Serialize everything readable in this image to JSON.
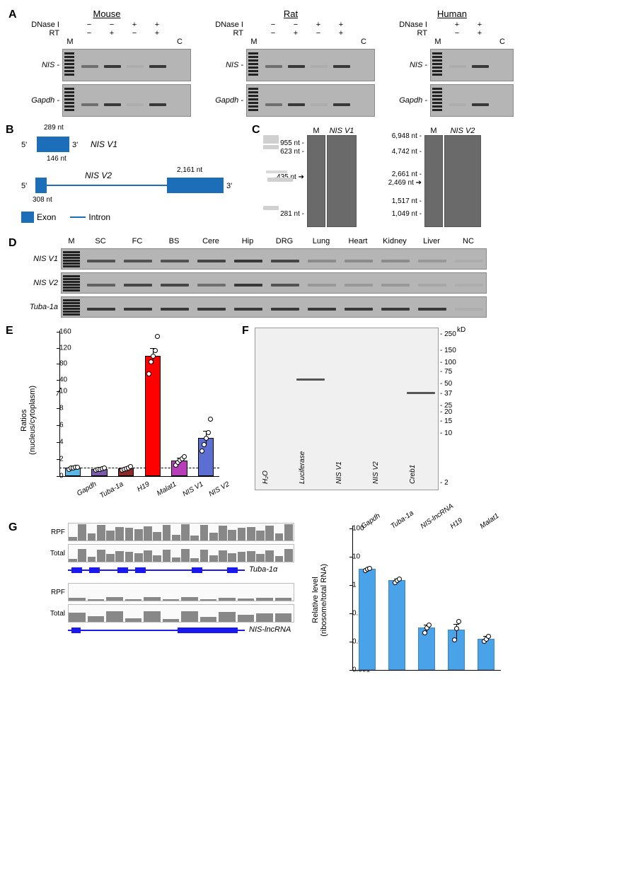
{
  "figure": {
    "panels": [
      "A",
      "B",
      "C",
      "D",
      "E",
      "F",
      "G"
    ]
  },
  "panelA": {
    "species": [
      "Mouse",
      "Rat",
      "Human"
    ],
    "row_labels": [
      "DNase I",
      "RT"
    ],
    "marker_label": "M",
    "neg_ctrl": "C",
    "conditions_full": {
      "dnase": [
        "−",
        "−",
        "+",
        "+"
      ],
      "rt": [
        "−",
        "+",
        "−",
        "+"
      ]
    },
    "conditions_human": {
      "dnase": [
        "+",
        "+"
      ],
      "rt": [
        "−",
        "+"
      ]
    },
    "gene_labels": [
      "NIS",
      "Gapdh"
    ],
    "gel_bg": "#b5b5b5",
    "band_color": "#2a2a2a"
  },
  "panelB": {
    "variants": {
      "v1": {
        "name": "NIS V1",
        "exons_nt": [
          289,
          146
        ]
      },
      "v2": {
        "name": "NIS V2",
        "exon1_nt": 308,
        "exon2_nt": 2161
      }
    },
    "ends": [
      "5'",
      "3'"
    ],
    "legend": {
      "exon": "Exon",
      "intron": "Intron"
    },
    "exon_color": "#1d6eb8"
  },
  "panelC": {
    "marker_label": "M",
    "columns": [
      "NIS V1",
      "NIS V2"
    ],
    "v1_ladder_nt": [
      "955 nt",
      "623 nt",
      "435 nt",
      "281 nt"
    ],
    "v1_arrow_nt": "435 nt",
    "v2_ladder_nt": [
      "6,948 nt",
      "4,742 nt",
      "2,661 nt",
      "2,469 nt",
      "1,517 nt",
      "1,049 nt"
    ],
    "v2_arrow_nt": "2,469 nt"
  },
  "panelD": {
    "marker_label": "M",
    "tissues": [
      "SC",
      "FC",
      "BS",
      "Cere",
      "Hip",
      "DRG",
      "Lung",
      "Heart",
      "Kidney",
      "Liver",
      "NC"
    ],
    "rows": [
      "NIS V1",
      "NIS V2",
      "Tuba-1a"
    ],
    "intensity": {
      "NIS V1": [
        0.7,
        0.7,
        0.7,
        0.8,
        0.9,
        0.8,
        0.3,
        0.3,
        0.3,
        0.2,
        0.05
      ],
      "NIS V2": [
        0.6,
        0.8,
        0.8,
        0.5,
        0.9,
        0.7,
        0.2,
        0.2,
        0.2,
        0.1,
        0.05
      ],
      "Tuba-1a": [
        0.9,
        0.9,
        0.9,
        0.9,
        0.9,
        0.9,
        0.9,
        0.9,
        0.9,
        0.9,
        0.05
      ]
    }
  },
  "panelE": {
    "ylabel": "Ratios\n(nucleus/cytoplasm)",
    "categories": [
      "Gapdh",
      "Tuba-1a",
      "H19",
      "Malat1",
      "NIS V1",
      "NIS V2"
    ],
    "values": [
      1.0,
      0.9,
      0.95,
      100,
      1.9,
      4.5
    ],
    "errors": [
      0.1,
      0.1,
      0.15,
      20,
      0.3,
      0.9
    ],
    "points": {
      "Gapdh": [
        0.9,
        1.0,
        1.05,
        1.1,
        1.15
      ],
      "Tuba-1a": [
        0.8,
        0.85,
        0.9,
        0.95,
        1.0
      ],
      "H19": [
        0.75,
        0.85,
        0.95,
        1.0,
        1.2
      ],
      "Malat1": [
        55,
        85,
        100,
        115,
        150
      ],
      "NIS V1": [
        1.4,
        1.7,
        1.95,
        2.1,
        2.4
      ],
      "NIS V2": [
        3.0,
        3.8,
        4.5,
        5.2,
        6.8
      ]
    },
    "bar_colors": [
      "#58b8e8",
      "#7d59ad",
      "#8c2a2a",
      "#ff0000",
      "#b83db8",
      "#5a6fd1"
    ],
    "broken_axis": {
      "lower": [
        0,
        2,
        4,
        6,
        8,
        10
      ],
      "upper": [
        40,
        80,
        120,
        160
      ]
    },
    "hline": 1.0,
    "bar_width": 0.6
  },
  "panelF": {
    "lanes": [
      "H₂O",
      "Luciferase",
      "NIS V1",
      "NIS V2",
      "Creb1"
    ],
    "size_unit": "kD",
    "sizes_kd": [
      250,
      150,
      100,
      75,
      50,
      37,
      25,
      20,
      15,
      10,
      2
    ],
    "bands": {
      "Luciferase": 62,
      "Creb1": 40
    }
  },
  "panelG": {
    "left_tracks": [
      "RPF",
      "Total"
    ],
    "genes": [
      "Tuba-1α",
      "NIS-lncRNA"
    ],
    "right": {
      "ylabel": "Relative level\n(ribosome/total RNA)",
      "categories": [
        "Gapdh",
        "Tuba-1a",
        "NIS-lncRNA",
        "H19",
        "Malat1"
      ],
      "values": [
        3.8,
        1.5,
        0.032,
        0.028,
        0.013
      ],
      "errors": [
        0.4,
        0.2,
        0.01,
        0.015,
        0.003
      ],
      "points": {
        "Gapdh": [
          3.5,
          3.8,
          4.1
        ],
        "Tuba-1a": [
          1.3,
          1.5,
          1.7
        ],
        "NIS-lncRNA": [
          0.022,
          0.032,
          0.042
        ],
        "H19": [
          0.012,
          0.03,
          0.055
        ],
        "Malat1": [
          0.011,
          0.013,
          0.016
        ]
      },
      "yscale": "log",
      "yticks": [
        0.001,
        0.01,
        0.1,
        1,
        10,
        100
      ],
      "bar_color": "#4aa3e8"
    }
  }
}
